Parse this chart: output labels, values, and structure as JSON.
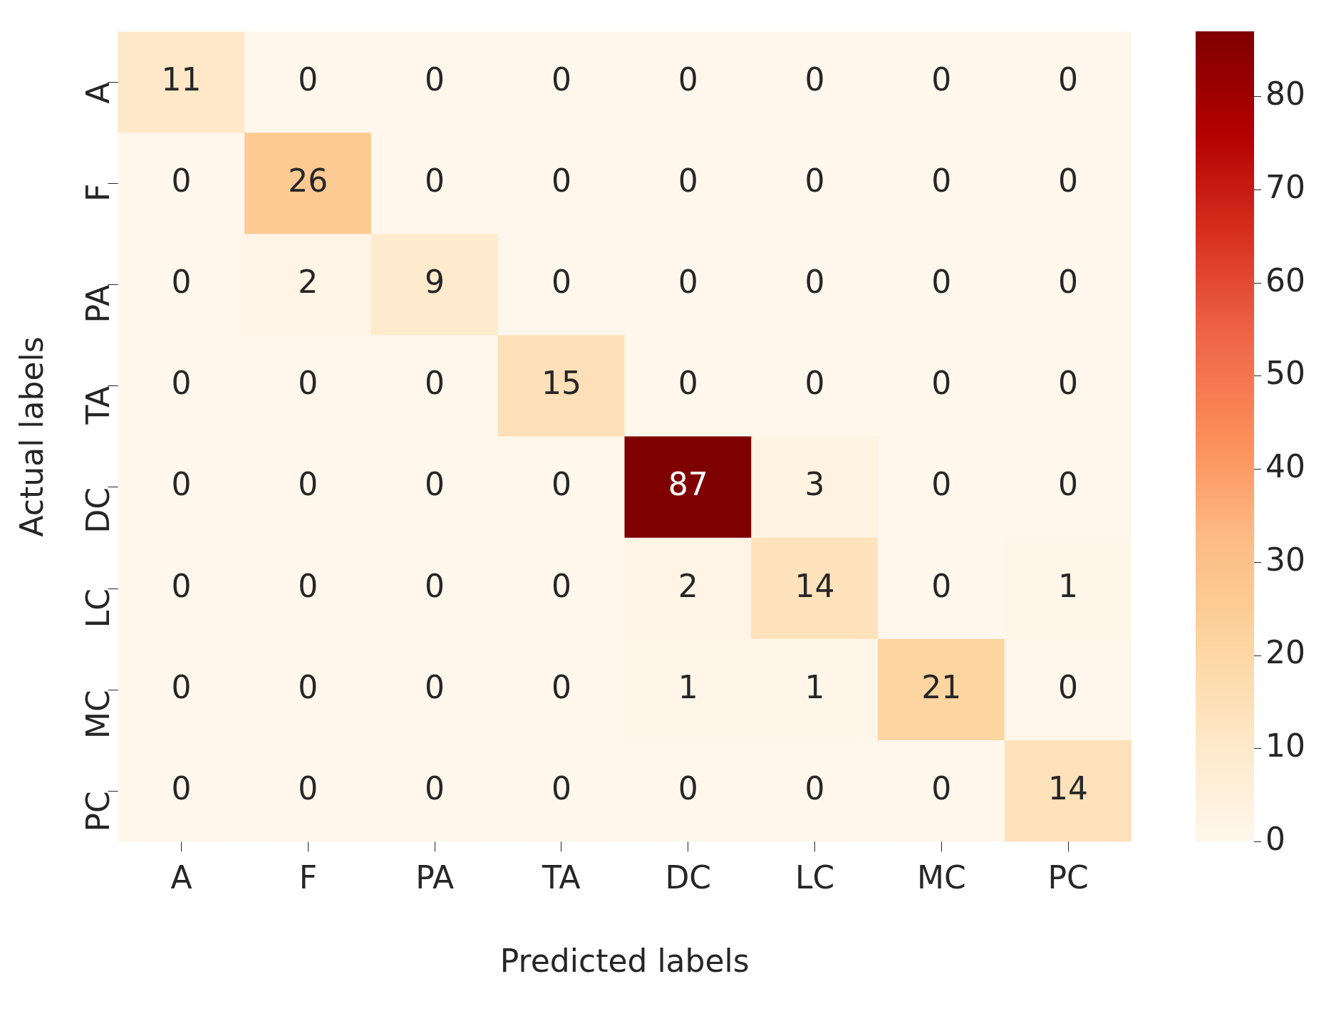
{
  "chart_data": {
    "type": "heatmap",
    "xlabel": "Predicted labels",
    "ylabel": "Actual labels",
    "categories": [
      "A",
      "F",
      "PA",
      "TA",
      "DC",
      "LC",
      "MC",
      "PC"
    ],
    "y_categories": [
      "A",
      "F",
      "PA",
      "TA",
      "DC",
      "LC",
      "MC",
      "PC"
    ],
    "cells": [
      [
        11,
        0,
        0,
        0,
        0,
        0,
        0,
        0
      ],
      [
        0,
        26,
        0,
        0,
        0,
        0,
        0,
        0
      ],
      [
        0,
        2,
        9,
        0,
        0,
        0,
        0,
        0
      ],
      [
        0,
        0,
        0,
        15,
        0,
        0,
        0,
        0
      ],
      [
        0,
        0,
        0,
        0,
        87,
        3,
        0,
        0
      ],
      [
        0,
        0,
        0,
        0,
        2,
        14,
        0,
        1
      ],
      [
        0,
        0,
        0,
        0,
        1,
        1,
        21,
        0
      ],
      [
        0,
        0,
        0,
        0,
        0,
        0,
        0,
        14
      ]
    ],
    "clim": [
      0,
      87
    ],
    "cticks": [
      0,
      10,
      20,
      30,
      40,
      50,
      60,
      70,
      80
    ],
    "data_labels": true
  }
}
